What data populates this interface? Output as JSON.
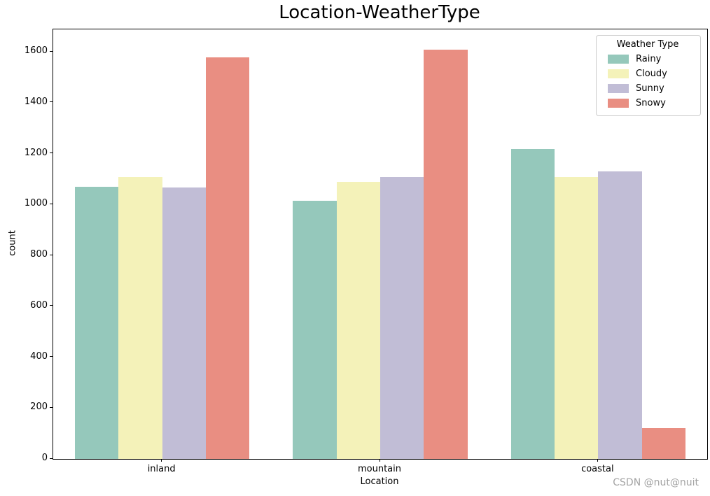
{
  "watermark": "CSDN @nut@nuit",
  "chart_data": {
    "type": "bar",
    "title": "Location-WeatherType",
    "xlabel": "Location",
    "ylabel": "count",
    "categories": [
      "inland",
      "mountain",
      "coastal"
    ],
    "series": [
      {
        "name": "Rainy",
        "color": "#95c8bb",
        "values": [
          1069,
          1014,
          1218
        ]
      },
      {
        "name": "Cloudy",
        "color": "#f4f2b9",
        "values": [
          1108,
          1088,
          1108
        ]
      },
      {
        "name": "Sunny",
        "color": "#c1bdd6",
        "values": [
          1066,
          1108,
          1130
        ]
      },
      {
        "name": "Snowy",
        "color": "#e98e82",
        "values": [
          1578,
          1607,
          120
        ]
      }
    ],
    "ylim": [
      0,
      1688
    ],
    "yticks": [
      0,
      200,
      400,
      600,
      800,
      1000,
      1200,
      1400,
      1600
    ],
    "legend_title": "Weather Type",
    "legend_position": "upper right",
    "grid": false,
    "group_width_fraction": 0.8
  }
}
